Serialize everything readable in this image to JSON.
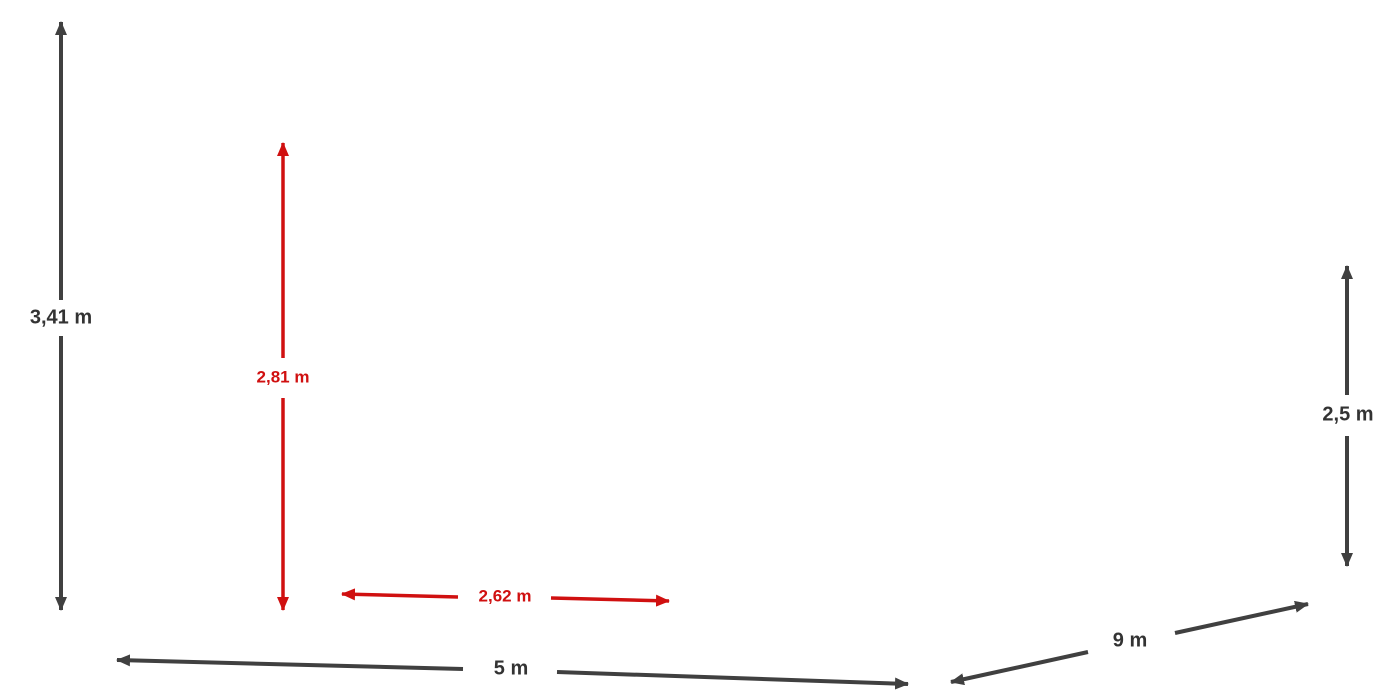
{
  "dimensions": [
    {
      "label": "3,41 m"
    },
    {
      "label": "2,81 m"
    },
    {
      "label": "2,62 m"
    },
    {
      "label": "5 m"
    },
    {
      "label": "9 m"
    },
    {
      "label": "2,5 m"
    }
  ]
}
